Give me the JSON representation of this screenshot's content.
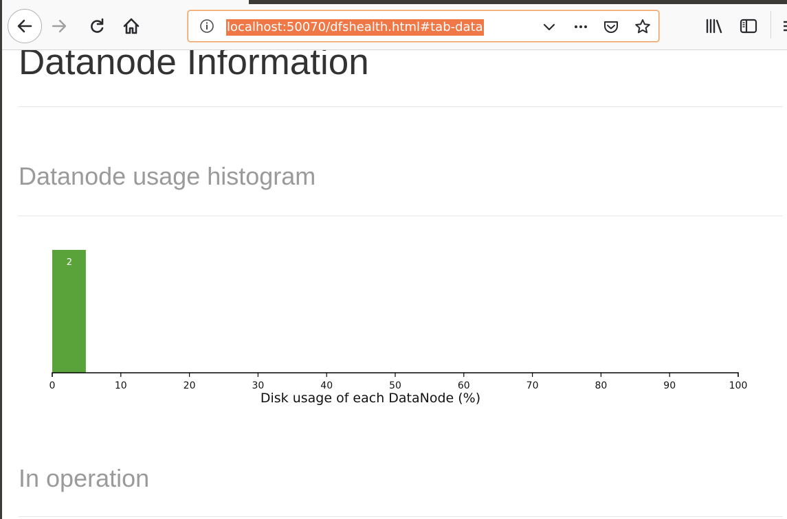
{
  "browser": {
    "url": "localhost:50070/dfshealth.html#tab-data",
    "accent_color": "#f07746"
  },
  "icons": {
    "back": "back-arrow-icon",
    "forward": "forward-arrow-icon",
    "reload": "reload-icon",
    "home": "home-icon",
    "info": "info-icon",
    "dropdown": "chevron-down-icon",
    "more": "more-icon",
    "pocket": "pocket-icon",
    "bookmark": "star-icon",
    "library": "library-icon",
    "sidebar": "sidebar-icon",
    "menu": "menu-icon"
  },
  "page": {
    "title": "Datanode Information",
    "histogram_heading": "Datanode usage histogram",
    "in_operation_heading": "In operation"
  },
  "chart_data": {
    "type": "bar",
    "xlabel": "Disk usage of each DataNode (%)",
    "ylabel": "",
    "xlim": [
      0,
      100
    ],
    "x_ticks": [
      "0",
      "10",
      "20",
      "30",
      "40",
      "50",
      "60",
      "70",
      "80",
      "90",
      "100"
    ],
    "bins": [
      {
        "x0": 0,
        "x1": 5,
        "count": 2,
        "label": "2"
      }
    ],
    "bar_color": "#5aa23a",
    "grid": false
  }
}
